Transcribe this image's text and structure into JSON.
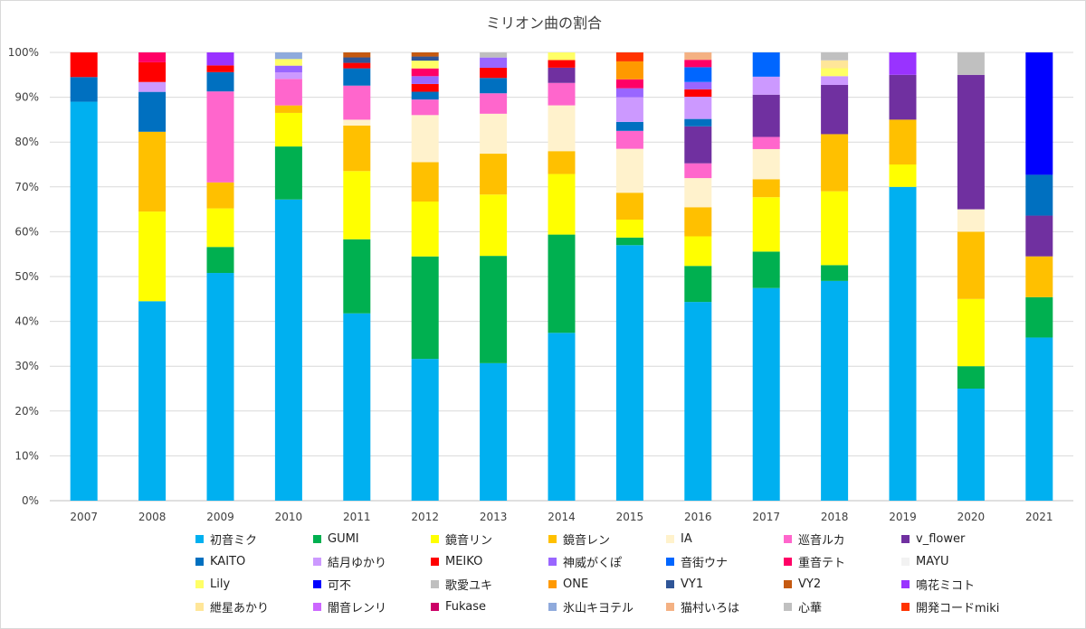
{
  "chart_data": {
    "type": "bar",
    "stacked": true,
    "title": "ミリオン曲の割合",
    "xlabel": "",
    "ylabel": "",
    "ylim": [
      0,
      100
    ],
    "y_ticks": [
      "0%",
      "10%",
      "20%",
      "30%",
      "40%",
      "50%",
      "60%",
      "70%",
      "80%",
      "90%",
      "100%"
    ],
    "grid": true,
    "legend_position": "bottom",
    "categories": [
      "2007",
      "2008",
      "2009",
      "2010",
      "2011",
      "2012",
      "2013",
      "2014",
      "2015",
      "2016",
      "2017",
      "2018",
      "2019",
      "2020",
      "2021"
    ],
    "series": [
      {
        "name": "初音ミク",
        "color": "#00b0f0",
        "values": [
          89,
          44.5,
          50.8,
          68.2,
          41.2,
          31,
          29.6,
          37.4,
          57,
          43,
          47.3,
          50,
          70,
          25,
          36.4
        ]
      },
      {
        "name": "GUMI",
        "color": "#00b050",
        "values": [
          0,
          0,
          5.8,
          12,
          16.3,
          22.4,
          23.1,
          21.9,
          1.7,
          7.8,
          8.1,
          3.6,
          0,
          5,
          9
        ]
      },
      {
        "name": "鏡音リン",
        "color": "#ffff00",
        "values": [
          0,
          20,
          8.6,
          7.6,
          15,
          12,
          13.2,
          13.5,
          4,
          6.4,
          12.1,
          16.8,
          5,
          15,
          0
        ]
      },
      {
        "name": "鏡音レン",
        "color": "#ffc000",
        "values": [
          0,
          17.8,
          5.8,
          1.7,
          10,
          8.6,
          8.8,
          5.1,
          6,
          6.3,
          4,
          13,
          10,
          15,
          9.1
        ]
      },
      {
        "name": "IA",
        "color": "#fff2cc",
        "values": [
          0,
          0,
          0,
          0,
          1.3,
          10.3,
          8.6,
          10.2,
          9.8,
          6.3,
          6.7,
          0,
          0,
          5,
          0
        ]
      },
      {
        "name": "巡音ルカ",
        "color": "#ff66cc",
        "values": [
          0,
          0,
          20.3,
          6,
          7.5,
          3.4,
          4.4,
          5,
          4,
          3.2,
          2.7,
          0,
          0,
          0,
          0
        ]
      },
      {
        "name": "v_flower",
        "color": "#7030a0",
        "values": [
          0,
          0,
          0,
          0,
          0,
          0,
          0,
          3.4,
          0,
          8,
          9.4,
          11.2,
          10,
          30,
          9.1
        ]
      },
      {
        "name": "KAITO",
        "color": "#0070c0",
        "values": [
          5.5,
          8.9,
          4.3,
          0,
          3.8,
          1.7,
          3.3,
          0,
          2,
          1.6,
          0,
          0,
          0,
          0,
          9.1
        ]
      },
      {
        "name": "結月ゆかり",
        "color": "#cc99ff",
        "values": [
          0,
          2.2,
          0,
          1.5,
          0,
          0,
          0,
          0,
          5.5,
          4.8,
          4,
          2,
          0,
          0,
          0
        ]
      },
      {
        "name": "MEIKO",
        "color": "#ff0000",
        "values": [
          5.5,
          4.4,
          1.5,
          0,
          1.2,
          1.7,
          2.2,
          1.7,
          0,
          1.6,
          0,
          0,
          0,
          0,
          0
        ]
      },
      {
        "name": "神威がくぽ",
        "color": "#9966ff",
        "values": [
          0,
          0,
          0,
          1.5,
          0,
          1.7,
          2.2,
          0,
          2,
          1.6,
          0,
          0,
          0,
          0,
          0
        ]
      },
      {
        "name": "音街ウナ",
        "color": "#0066ff",
        "values": [
          0,
          0,
          0,
          0,
          0,
          0,
          0,
          0,
          0,
          3.2,
          5.4,
          0,
          0,
          0,
          0
        ]
      },
      {
        "name": "重音テト",
        "color": "#ff0066",
        "values": [
          0,
          2.2,
          0,
          0,
          0,
          1.7,
          0,
          0,
          2,
          1.6,
          0,
          0,
          0,
          0,
          0
        ]
      },
      {
        "name": "MAYU",
        "color": "#f2f2f2",
        "values": [
          0,
          0,
          0,
          0,
          0,
          0,
          0,
          0,
          0,
          0,
          0,
          0,
          0,
          0,
          0
        ]
      },
      {
        "name": "Lily",
        "color": "#ffff66",
        "values": [
          0,
          0,
          0,
          1.5,
          0,
          1.7,
          0,
          1.7,
          0,
          0,
          0,
          1.8,
          0,
          0,
          0
        ]
      },
      {
        "name": "可不",
        "color": "#0000ff",
        "values": [
          0,
          0,
          0,
          0,
          0,
          0,
          0,
          0,
          0,
          0,
          0,
          0,
          0,
          0,
          27.3
        ]
      },
      {
        "name": "歌愛ユキ",
        "color": "#bfbfbf",
        "values": [
          0,
          0,
          0,
          0,
          0,
          0,
          1.1,
          0,
          0,
          0,
          0,
          0,
          0,
          0,
          0
        ]
      },
      {
        "name": "ONE",
        "color": "#ff9900",
        "values": [
          0,
          0,
          0,
          0,
          0,
          0,
          0,
          0,
          4,
          0,
          0,
          0,
          0,
          0,
          0
        ]
      },
      {
        "name": "VY1",
        "color": "#2f5597",
        "values": [
          0,
          0,
          0,
          0,
          1.2,
          0.9,
          0,
          0,
          0,
          0,
          0,
          0,
          0,
          0,
          0
        ]
      },
      {
        "name": "VY2",
        "color": "#c55a11",
        "values": [
          0,
          0,
          0,
          0,
          1.1,
          0.9,
          0,
          0,
          0,
          0,
          0,
          0,
          0,
          0,
          0
        ]
      },
      {
        "name": "鳴花ミコト",
        "color": "#9933ff",
        "values": [
          0,
          0,
          2.9,
          0,
          0,
          0,
          0,
          0,
          0,
          0,
          0,
          0,
          5,
          0,
          0
        ]
      },
      {
        "name": "紲星あかり",
        "color": "#ffe699",
        "values": [
          0,
          0,
          0,
          0,
          0,
          0,
          0,
          0,
          0,
          0,
          0,
          1.8,
          0,
          0,
          0
        ]
      },
      {
        "name": "闇音レンリ",
        "color": "#cc66ff",
        "values": [
          0,
          0,
          0,
          0,
          0,
          0,
          0,
          0,
          0,
          0,
          0,
          0,
          0,
          0,
          0
        ]
      },
      {
        "name": "Fukase",
        "color": "#cc0066",
        "values": [
          0,
          0,
          0,
          0,
          0,
          0,
          0,
          0,
          0,
          0,
          0,
          0,
          0,
          0,
          0
        ]
      },
      {
        "name": "氷山キヨテル",
        "color": "#8faadc",
        "values": [
          0,
          0,
          0,
          1.5,
          0,
          0,
          0,
          0,
          0,
          0,
          0,
          0,
          0,
          0,
          0
        ]
      },
      {
        "name": "猫村いろは",
        "color": "#f4b183",
        "values": [
          0,
          0,
          0,
          0,
          0,
          0,
          0,
          0,
          0,
          1.6,
          0,
          0,
          0,
          0,
          0
        ]
      },
      {
        "name": "心華",
        "color": "#c0c0c0",
        "values": [
          0,
          0,
          0,
          0,
          0,
          0,
          0,
          0,
          0,
          0,
          0,
          1.8,
          0,
          5,
          0
        ]
      },
      {
        "name": "開発コードmiki",
        "color": "#ff3300",
        "values": [
          0,
          0,
          0,
          0,
          0,
          0,
          0,
          0,
          2,
          0,
          0,
          0,
          0,
          0,
          0
        ]
      }
    ]
  }
}
